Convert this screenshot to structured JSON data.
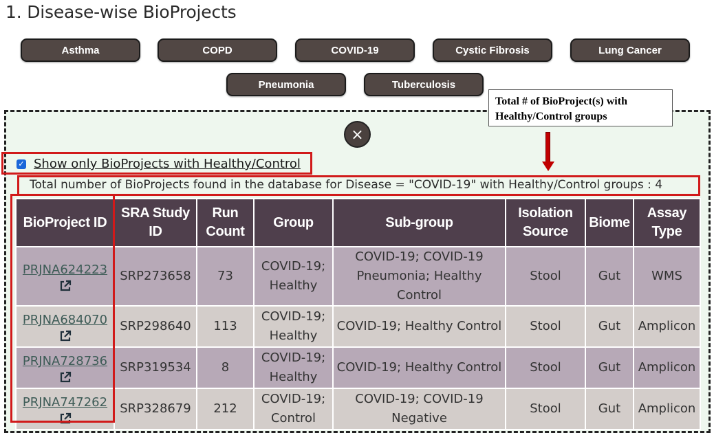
{
  "heading": "1. Disease-wise BioProjects",
  "diseases": [
    "Asthma",
    "COPD",
    "COVID-19",
    "Cystic Fibrosis",
    "Lung Cancer",
    "Pneumonia",
    "Tuberculosis"
  ],
  "close_symbol": "×",
  "callout": {
    "line1": "Total # of BioProject(s) with",
    "line2": "Healthy/Control groups"
  },
  "filter": {
    "label": "Show only BioProjects with Healthy/Control",
    "checked": true
  },
  "total_text": "Total number of BioProjects found in the database for Disease = \"COVID-19\" with Healthy/Control groups : 4",
  "table": {
    "headers": {
      "bioproject": "BioProject ID",
      "sra": "SRA Study ID",
      "run_count": "Run Count",
      "group": "Group",
      "subgroup": "Sub-group",
      "isolation": "Isolation Source",
      "biome": "Biome",
      "assay": "Assay Type"
    },
    "rows": [
      {
        "bioproject": "PRJNA624223",
        "sra": "SRP273658",
        "run_count": "73",
        "group": "COVID-19; Healthy",
        "subgroup": "COVID-19; COVID-19 Pneumonia; Healthy Control",
        "isolation": "Stool",
        "biome": "Gut",
        "assay": "WMS"
      },
      {
        "bioproject": "PRJNA684070",
        "sra": "SRP298640",
        "run_count": "113",
        "group": "COVID-19; Healthy",
        "subgroup": "COVID-19; Healthy Control",
        "isolation": "Stool",
        "biome": "Gut",
        "assay": "Amplicon"
      },
      {
        "bioproject": "PRJNA728736",
        "sra": "SRP319534",
        "run_count": "8",
        "group": "COVID-19; Healthy",
        "subgroup": "COVID-19; Healthy Control",
        "isolation": "Stool",
        "biome": "Gut",
        "assay": "Amplicon"
      },
      {
        "bioproject": "PRJNA747262",
        "sra": "SRP328679",
        "run_count": "212",
        "group": "COVID-19; Control",
        "subgroup": "COVID-19; COVID-19 Negative",
        "isolation": "Stool",
        "biome": "Gut",
        "assay": "Amplicon"
      }
    ]
  },
  "colors": {
    "button_bg": "#514744",
    "header_bg": "#4f3f4c",
    "row_odd": "#b7a9b7",
    "row_even": "#d3cdca",
    "panel_bg": "#eef7ee",
    "highlight_red": "#d11a1a",
    "arrow_red": "#c00000"
  }
}
